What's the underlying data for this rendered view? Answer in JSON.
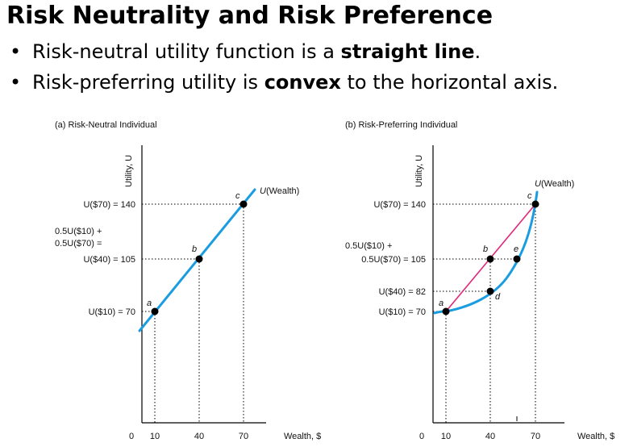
{
  "title": "Risk Neutrality and Risk Preference",
  "bullets": [
    {
      "bullet": "•",
      "before": "Risk-neutral utility function is a ",
      "bold": "straight line",
      "after": "."
    },
    {
      "bullet": "•",
      "before": "Risk-preferring utility is ",
      "bold": "convex",
      "after": " to the horizontal axis."
    }
  ],
  "colors": {
    "curve": "#1a9de0",
    "chord": "#e0287a",
    "axis": "#000000"
  },
  "panel_a": {
    "title": "(a) Risk-Neutral Individual",
    "y_axis_label": "Utility, U",
    "x_axis_label": "Wealth, $",
    "curve_label_u": "U",
    "curve_label_rest": "(Wealth)",
    "x_ticks": [
      "0",
      "10",
      "40",
      "70"
    ],
    "y_labels": {
      "u70": "U($70) = 140",
      "exp_line1": "0.5U($10) +",
      "exp_line2": "0.5U($70) =",
      "exp_line3": "U($40) = 105",
      "u10": "U($10) = 70"
    },
    "points": [
      {
        "label": "a",
        "wealth": 10,
        "utility": 70
      },
      {
        "label": "b",
        "wealth": 40,
        "utility": 105
      },
      {
        "label": "c",
        "wealth": 70,
        "utility": 140
      }
    ]
  },
  "panel_b": {
    "title": "(b) Risk-Preferring Individual",
    "y_axis_label": "Utility, U",
    "x_axis_label": "Wealth, $",
    "curve_label_u": "U",
    "curve_label_rest": "(Wealth)",
    "x_ticks": [
      "0",
      "10",
      "40",
      "70"
    ],
    "y_labels": {
      "u70": "U($70) = 140",
      "exp_line1": "0.5U($10) +",
      "exp_line2": "0.5U($70) = 105",
      "u40": "U($40) = 82",
      "u10": "U($10) = 70"
    },
    "points": [
      {
        "label": "a",
        "wealth": 10,
        "utility": 70
      },
      {
        "label": "b",
        "wealth": 40,
        "utility": 105
      },
      {
        "label": "c",
        "wealth": 70,
        "utility": 140
      },
      {
        "label": "d",
        "wealth": 40,
        "utility": 82
      },
      {
        "label": "e",
        "wealth": 58,
        "utility": 105
      }
    ]
  }
}
